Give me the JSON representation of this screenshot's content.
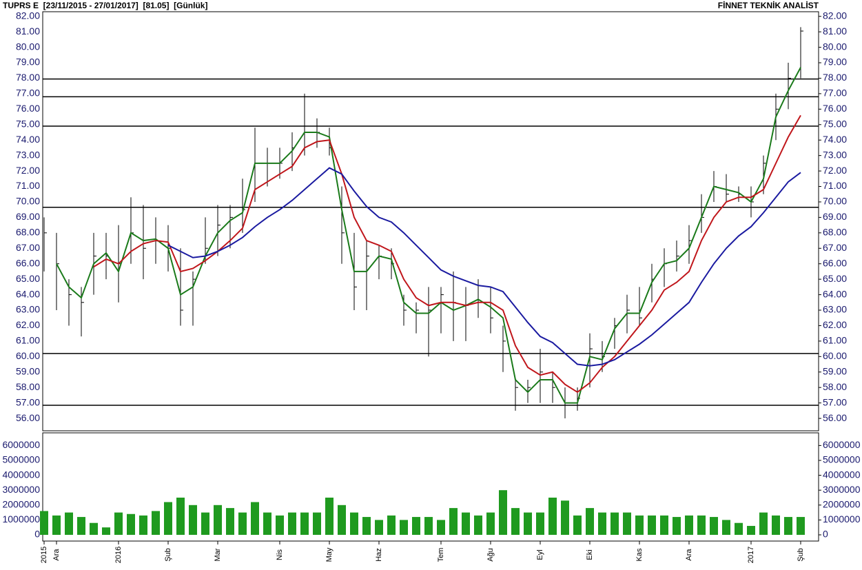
{
  "header": {
    "title": "TUPRS E  [23/11/2015 - 27/01/2017]  [81.05]  [Günlük]",
    "brand": "FİNNET TEKNİK ANALİST"
  },
  "chart_data": [
    {
      "type": "ohlc",
      "categories": [
        "2015",
        "Ara",
        null,
        null,
        null,
        null,
        "2016",
        null,
        null,
        null,
        "Şub",
        null,
        null,
        null,
        "Mar",
        null,
        null,
        null,
        null,
        "Nis",
        null,
        null,
        null,
        "May",
        null,
        null,
        null,
        "Haz",
        null,
        null,
        null,
        null,
        "Tem",
        null,
        null,
        null,
        "Ağu",
        null,
        null,
        null,
        "Eyl",
        null,
        null,
        null,
        "Eki",
        null,
        null,
        null,
        "Kas",
        null,
        null,
        null,
        "Ara",
        null,
        null,
        null,
        null,
        "2017",
        null,
        null,
        null,
        "Şub"
      ],
      "high": [
        69,
        68,
        65,
        64.5,
        68,
        68,
        68.5,
        70.3,
        69.8,
        69,
        68.5,
        67,
        65.5,
        69,
        69.8,
        69.8,
        71.5,
        74.8,
        73.5,
        73.5,
        74.5,
        77,
        75.4,
        74.8,
        71,
        68,
        67.5,
        67.2,
        67,
        64,
        63.5,
        64.5,
        64.5,
        65.5,
        64.5,
        65,
        64.5,
        62,
        58.5,
        58.5,
        60.5,
        59,
        58,
        58,
        61.5,
        61,
        62.5,
        64,
        64.5,
        66,
        67,
        67.5,
        68.5,
        70.5,
        72,
        71.8,
        71,
        71,
        73,
        77,
        79,
        81.3
      ],
      "low": [
        65.5,
        63,
        62,
        61.3,
        64,
        65,
        63.5,
        66,
        65,
        66,
        65.5,
        62,
        62,
        66,
        66.5,
        67,
        68,
        70,
        71,
        71.5,
        72,
        73,
        73.5,
        73,
        66,
        63,
        63,
        65,
        65,
        62,
        61.5,
        60,
        61.5,
        61,
        61,
        62.5,
        61.5,
        59,
        56.5,
        57,
        57,
        57,
        56,
        56.5,
        58,
        59,
        60.5,
        61.5,
        62,
        63.5,
        64.5,
        65.5,
        66,
        68,
        70,
        70,
        70,
        69,
        70.5,
        74,
        76,
        78
      ],
      "close": [
        68,
        66,
        64,
        63.5,
        66.5,
        66.5,
        66,
        68,
        67,
        67.5,
        67,
        63,
        65,
        67,
        68.5,
        69,
        69.5,
        72.5,
        72.5,
        72.5,
        73.5,
        74.5,
        74.5,
        73.5,
        68,
        64.5,
        66.5,
        66.5,
        66,
        63,
        63,
        63,
        64,
        63.5,
        63.3,
        63.5,
        62.5,
        61,
        58,
        58,
        59,
        58,
        57,
        57.3,
        60.5,
        60,
        62,
        63,
        62.5,
        65,
        66,
        66.5,
        67.5,
        69,
        71,
        70.5,
        70.5,
        70,
        72.5,
        76,
        78,
        81.05
      ],
      "color": "#000000",
      "ma": [
        {
          "color": "#1a7a1a",
          "values": [
            null,
            66,
            64.5,
            63.8,
            66,
            66.7,
            65.5,
            68,
            67.5,
            67.6,
            67,
            64,
            64.5,
            66.5,
            68,
            68.8,
            69.3,
            72.5,
            72.5,
            72.5,
            73.3,
            74.5,
            74.5,
            74.2,
            69.5,
            65.5,
            65.5,
            66.5,
            66.3,
            63.5,
            62.8,
            62.8,
            63.5,
            63,
            63.3,
            63.7,
            63.2,
            62.5,
            58.5,
            57.7,
            58.5,
            58.5,
            57,
            57,
            60,
            59.8,
            61.8,
            62.8,
            62.8,
            64.8,
            66,
            66.2,
            67,
            69,
            71,
            70.8,
            70.6,
            70,
            71.5,
            75.5,
            77.2,
            78.7
          ]
        },
        {
          "color": "#c0161b",
          "values": [
            null,
            null,
            null,
            null,
            65.8,
            66.3,
            66,
            66.8,
            67.3,
            67.5,
            67.4,
            65.5,
            65.7,
            66.2,
            66.8,
            67.5,
            68.3,
            70.8,
            71.3,
            71.8,
            72.3,
            73.5,
            73.9,
            74,
            71.8,
            69,
            67.5,
            67.2,
            66.8,
            65,
            63.8,
            63.3,
            63.5,
            63.5,
            63.3,
            63.5,
            63.5,
            63,
            60.7,
            59.3,
            58.8,
            59,
            58.2,
            57.7,
            58.3,
            59.3,
            60,
            61,
            62,
            63,
            64.3,
            64.8,
            65.5,
            67.5,
            69,
            70,
            70.3,
            70.3,
            70.8,
            72.5,
            74.2,
            75.6
          ]
        },
        {
          "color": "#1a1aa0",
          "values": [
            null,
            null,
            null,
            null,
            null,
            null,
            null,
            null,
            null,
            null,
            67.2,
            66.8,
            66.4,
            66.5,
            66.8,
            67.2,
            67.7,
            68.4,
            69,
            69.5,
            70.1,
            70.8,
            71.5,
            72.2,
            71.8,
            70.7,
            69.7,
            69,
            68.7,
            68,
            67.2,
            66.4,
            65.6,
            65.2,
            64.9,
            64.6,
            64.5,
            64.2,
            63.2,
            62.2,
            61.3,
            60.9,
            60.2,
            59.5,
            59.4,
            59.5,
            59.8,
            60.3,
            60.8,
            61.4,
            62.1,
            62.8,
            63.5,
            64.8,
            66,
            67,
            67.8,
            68.4,
            69.3,
            70.3,
            71.3,
            71.9
          ]
        }
      ],
      "levels": [
        56.85,
        60.2,
        69.65,
        74.9,
        76.8,
        77.95
      ],
      "level_color": "#000000",
      "ylim": [
        55.2,
        82.3
      ],
      "yticks": [
        {
          "value": 56,
          "label": "56.00"
        },
        {
          "value": 57,
          "label": "57.00"
        },
        {
          "value": 58,
          "label": "58.00"
        },
        {
          "value": 59,
          "label": "59.00"
        },
        {
          "value": 60,
          "label": "60.00"
        },
        {
          "value": 61,
          "label": "61.00"
        },
        {
          "value": 62,
          "label": "62.00"
        },
        {
          "value": 63,
          "label": "63.00"
        },
        {
          "value": 64,
          "label": "64.00"
        },
        {
          "value": 65,
          "label": "65.00"
        },
        {
          "value": 66,
          "label": "66.00"
        },
        {
          "value": 67,
          "label": "67.00"
        },
        {
          "value": 68,
          "label": "68.00"
        },
        {
          "value": 69,
          "label": "69.00"
        },
        {
          "value": 70,
          "label": "70.00"
        },
        {
          "value": 71,
          "label": "71.00"
        },
        {
          "value": 72,
          "label": "72.00"
        },
        {
          "value": 73,
          "label": "73.00"
        },
        {
          "value": 74,
          "label": "74.00"
        },
        {
          "value": 75,
          "label": "75.00"
        },
        {
          "value": 76,
          "label": "76.00"
        },
        {
          "value": 77,
          "label": "77.00"
        },
        {
          "value": 78,
          "label": "78.00"
        },
        {
          "value": 79,
          "label": "79.00"
        },
        {
          "value": 80,
          "label": "80.00"
        },
        {
          "value": 81,
          "label": "81.00"
        },
        {
          "value": 82,
          "label": "82.00"
        }
      ]
    },
    {
      "type": "bar",
      "values": [
        1600000,
        1300000,
        1500000,
        1200000,
        800000,
        500000,
        1500000,
        1400000,
        1300000,
        1600000,
        2200000,
        2500000,
        2000000,
        1500000,
        2000000,
        1800000,
        1500000,
        2200000,
        1500000,
        1300000,
        1500000,
        1500000,
        1500000,
        2500000,
        2000000,
        1500000,
        1200000,
        1000000,
        1300000,
        1000000,
        1200000,
        1200000,
        1000000,
        1800000,
        1500000,
        1300000,
        1500000,
        3000000,
        1800000,
        1500000,
        1500000,
        2500000,
        2300000,
        1300000,
        1800000,
        1500000,
        1500000,
        1500000,
        1300000,
        1300000,
        1300000,
        1200000,
        1300000,
        1300000,
        1200000,
        1000000,
        800000,
        600000,
        1500000,
        1300000,
        1200000,
        1200000
      ],
      "color": "#1f9a1f",
      "ylim": [
        0,
        6850000
      ],
      "yticks": [
        0,
        1000000,
        2000000,
        3000000,
        4000000,
        5000000,
        6000000
      ]
    }
  ]
}
